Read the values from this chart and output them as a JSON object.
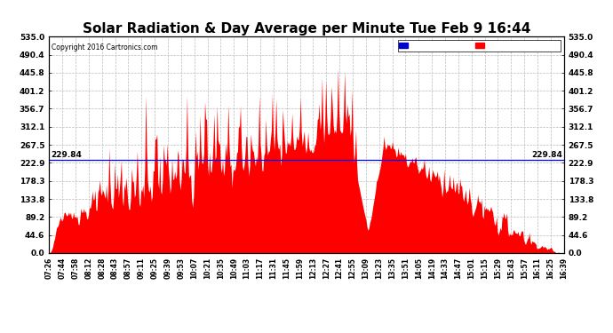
{
  "title": "Solar Radiation & Day Average per Minute Tue Feb 9 16:44",
  "copyright": "Copyright 2016 Cartronics.com",
  "median_value": 229.84,
  "ymin": 0.0,
  "ymax": 535.0,
  "yticks": [
    0.0,
    44.6,
    89.2,
    133.8,
    178.3,
    222.9,
    267.5,
    312.1,
    356.7,
    401.2,
    445.8,
    490.4,
    535.0
  ],
  "ytick_labels": [
    "0.0",
    "44.6",
    "89.2",
    "133.8",
    "178.3",
    "222.9",
    "267.5",
    "312.1",
    "356.7",
    "401.2",
    "445.8",
    "490.4",
    "535.0"
  ],
  "area_color": "#FF0000",
  "median_line_color": "#0000FF",
  "background_color": "#FFFFFF",
  "grid_color": "#BBBBBB",
  "title_fontsize": 11,
  "legend_median_color": "#0000CC",
  "legend_radiation_color": "#FF0000",
  "xtick_labels": [
    "07:26",
    "07:44",
    "07:58",
    "08:12",
    "08:28",
    "08:43",
    "08:57",
    "09:11",
    "09:25",
    "09:39",
    "09:53",
    "10:07",
    "10:21",
    "10:35",
    "10:49",
    "11:03",
    "11:17",
    "11:31",
    "11:45",
    "11:59",
    "12:13",
    "12:27",
    "12:41",
    "12:55",
    "13:09",
    "13:23",
    "13:35",
    "13:51",
    "14:05",
    "14:19",
    "14:33",
    "14:47",
    "15:01",
    "15:15",
    "15:29",
    "15:43",
    "15:57",
    "16:11",
    "16:25",
    "16:39"
  ],
  "num_points": 550,
  "figwidth": 6.9,
  "figheight": 3.75,
  "dpi": 100
}
